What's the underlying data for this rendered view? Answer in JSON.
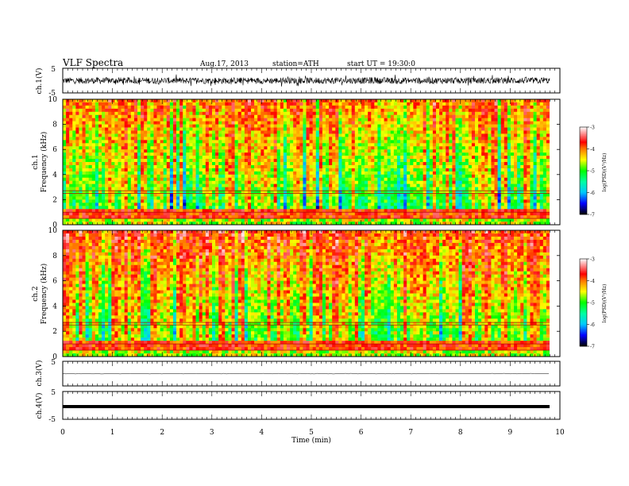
{
  "header": {
    "title": "VLF Spectra",
    "date": "Aug.17, 2013",
    "station": "station=ATH",
    "start": "start UT =  19:30:0"
  },
  "chart_data": [
    {
      "type": "line",
      "ylabel": "ch.1(V)",
      "ylim": [
        -5,
        5
      ],
      "y_ticks": [
        "5",
        "-5"
      ],
      "description_values": "broadband noisy waveform oscillating roughly between -2 and +2 V",
      "x_range": [
        0,
        9.8
      ]
    },
    {
      "type": "heatmap",
      "ylabel_top": "ch.1",
      "ylabel": "Frequency (kHz)",
      "ylim": [
        0,
        10
      ],
      "y_ticks": [
        "0",
        "2",
        "4",
        "6",
        "8",
        "10"
      ],
      "colorbar": {
        "label": "log(PSD)(V²/Hz)",
        "range": [
          -7,
          -3
        ],
        "ticks": [
          "-3",
          "-4",
          "-5",
          "-6",
          "-7"
        ],
        "colors": [
          "#ffffff",
          "#ff0000",
          "#ffff00",
          "#00ff00",
          "#00ffff",
          "#0000ff",
          "#000000"
        ]
      }
    },
    {
      "type": "heatmap",
      "ylabel_top": "ch.2",
      "ylabel": "Frequency (kHz)",
      "ylim": [
        0,
        10
      ],
      "y_ticks": [
        "0",
        "2",
        "4",
        "6",
        "8",
        "10"
      ],
      "colorbar": {
        "label": "log(PSD)(V²/Hz)",
        "range": [
          -7,
          -3
        ],
        "ticks": [
          "-3",
          "-4",
          "-5",
          "-6",
          "-7"
        ],
        "colors": [
          "#ffffff",
          "#ff0000",
          "#ffff00",
          "#00ff00",
          "#00ffff",
          "#0000ff",
          "#000000"
        ]
      }
    },
    {
      "type": "line",
      "ylabel": "ch.3(V)",
      "ylim": [
        -5,
        5
      ],
      "y_ticks": [
        "5"
      ],
      "values_note": "nearly flat near 0 V",
      "x_range": [
        0,
        9.8
      ]
    },
    {
      "type": "line",
      "ylabel": "ch.4(V)",
      "ylim": [
        -5,
        5
      ],
      "y_ticks": [
        "5",
        "-5"
      ],
      "values_note": "flat thick line near 0 V",
      "x_range": [
        0,
        9.8
      ]
    }
  ],
  "xaxis": {
    "label": "Time (min)",
    "range": [
      0,
      10
    ],
    "ticks": [
      "0",
      "1",
      "2",
      "3",
      "4",
      "5",
      "6",
      "7",
      "8",
      "9",
      "10"
    ]
  }
}
